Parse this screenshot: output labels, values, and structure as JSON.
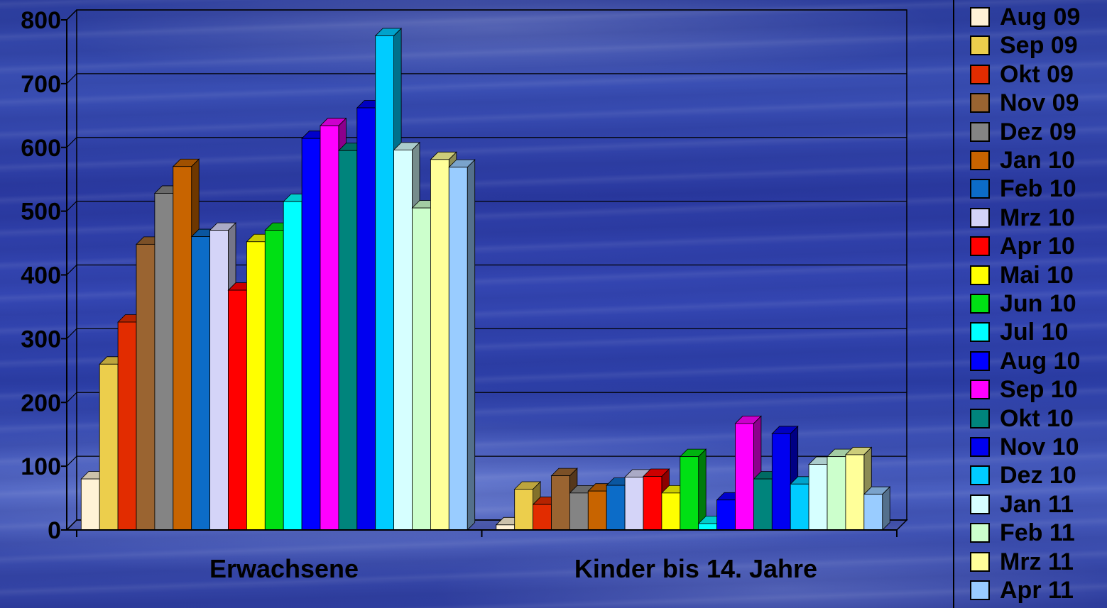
{
  "chart_data": {
    "type": "bar",
    "style": "3d-clustered",
    "categories": [
      "Erwachsene",
      "Kinder bis 14. Jahre"
    ],
    "ylim": [
      0,
      800
    ],
    "yticks": [
      "0",
      "100",
      "200",
      "300",
      "400",
      "500",
      "600",
      "700",
      "800"
    ],
    "grid": true,
    "legend_position": "right",
    "series": [
      {
        "name": "Aug 09",
        "color": "#fff2d6",
        "values": [
          80,
          8
        ]
      },
      {
        "name": "Sep 09",
        "color": "#ecce4c",
        "values": [
          260,
          64
        ]
      },
      {
        "name": "Okt 09",
        "color": "#e22c00",
        "values": [
          326,
          40
        ]
      },
      {
        "name": "Nov 09",
        "color": "#9a6431",
        "values": [
          448,
          85
        ]
      },
      {
        "name": "Dez 09",
        "color": "#848484",
        "values": [
          528,
          58
        ]
      },
      {
        "name": "Jan 10",
        "color": "#c86400",
        "values": [
          570,
          61
        ]
      },
      {
        "name": "Feb 10",
        "color": "#0c6cc8",
        "values": [
          460,
          70
        ]
      },
      {
        "name": "Mrz 10",
        "color": "#d4d4f8",
        "values": [
          470,
          83
        ]
      },
      {
        "name": "Apr 10",
        "color": "#ff0000",
        "values": [
          376,
          84
        ]
      },
      {
        "name": "Mai 10",
        "color": "#ffff00",
        "values": [
          452,
          58
        ]
      },
      {
        "name": "Jun 10",
        "color": "#00e014",
        "values": [
          470,
          115
        ]
      },
      {
        "name": "Jul 10",
        "color": "#00ffff",
        "values": [
          515,
          10
        ]
      },
      {
        "name": "Aug 10",
        "color": "#0000ff",
        "values": [
          614,
          47
        ]
      },
      {
        "name": "Sep 10",
        "color": "#ff00ff",
        "values": [
          634,
          167
        ]
      },
      {
        "name": "Okt 10",
        "color": "#00847c",
        "values": [
          595,
          80
        ]
      },
      {
        "name": "Nov 10",
        "color": "#0000f0",
        "values": [
          662,
          151
        ]
      },
      {
        "name": "Dez 10",
        "color": "#00ccff",
        "values": [
          775,
          72
        ]
      },
      {
        "name": "Jan 11",
        "color": "#d6ffff",
        "values": [
          596,
          103
        ]
      },
      {
        "name": "Feb 11",
        "color": "#ccffcc",
        "values": [
          505,
          115
        ]
      },
      {
        "name": "Mrz 11",
        "color": "#ffff99",
        "values": [
          581,
          118
        ]
      },
      {
        "name": "Apr 11",
        "color": "#99ccff",
        "values": [
          569,
          56
        ]
      }
    ]
  }
}
